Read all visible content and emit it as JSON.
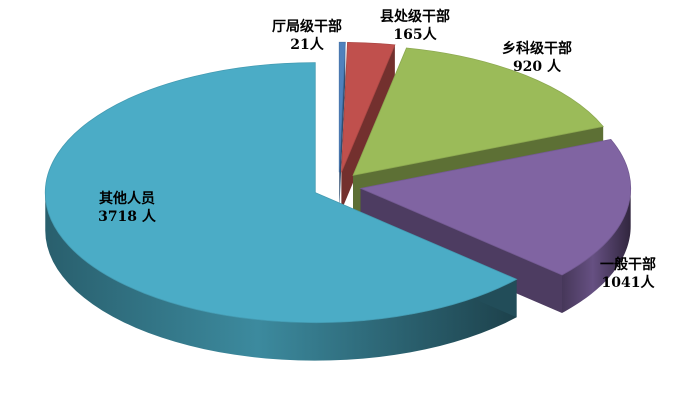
{
  "chart_data": {
    "type": "pie",
    "style": "3d-exploded",
    "legend": "none",
    "slices": [
      {
        "name": "厅局级干部",
        "value": 21,
        "value_label": "21人",
        "color": "#4f81bd"
      },
      {
        "name": "县处级干部",
        "value": 165,
        "value_label": "165人",
        "color": "#c0504d"
      },
      {
        "name": "乡科级干部",
        "value": 920,
        "value_label": "920 人",
        "color": "#9bbb59"
      },
      {
        "name": "一般干部",
        "value": 1041,
        "value_label": "1041人",
        "color": "#8064a2"
      },
      {
        "name": "其他人员",
        "value": 3718,
        "value_label": "3718 人",
        "color": "#4bacc6"
      }
    ]
  }
}
